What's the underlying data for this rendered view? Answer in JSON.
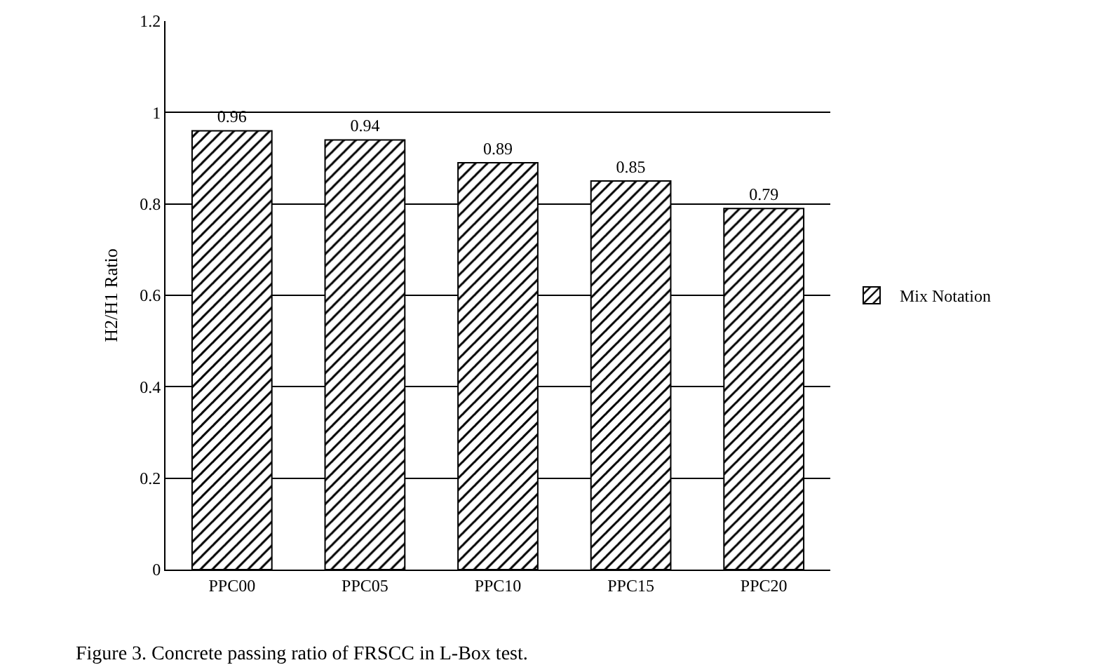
{
  "chart_data": {
    "type": "bar",
    "ylabel": "H2/H1 Ratio",
    "categories": [
      "PPC00",
      "PPC05",
      "PPC10",
      "PPC15",
      "PPC20"
    ],
    "series": [
      {
        "name": "Mix Notation",
        "color": "#000000",
        "values": [
          0.96,
          0.94,
          0.89,
          0.85,
          0.79
        ]
      }
    ],
    "ylim": [
      0,
      1.2
    ],
    "yticks": [
      0,
      0.2,
      0.4,
      0.6,
      0.8,
      1,
      1.2
    ],
    "grid": "y",
    "legend": "right",
    "data_labels": true,
    "annotations": [
      "Figure 3. Concrete passing ratio of FRSCC in L-Box test."
    ]
  }
}
